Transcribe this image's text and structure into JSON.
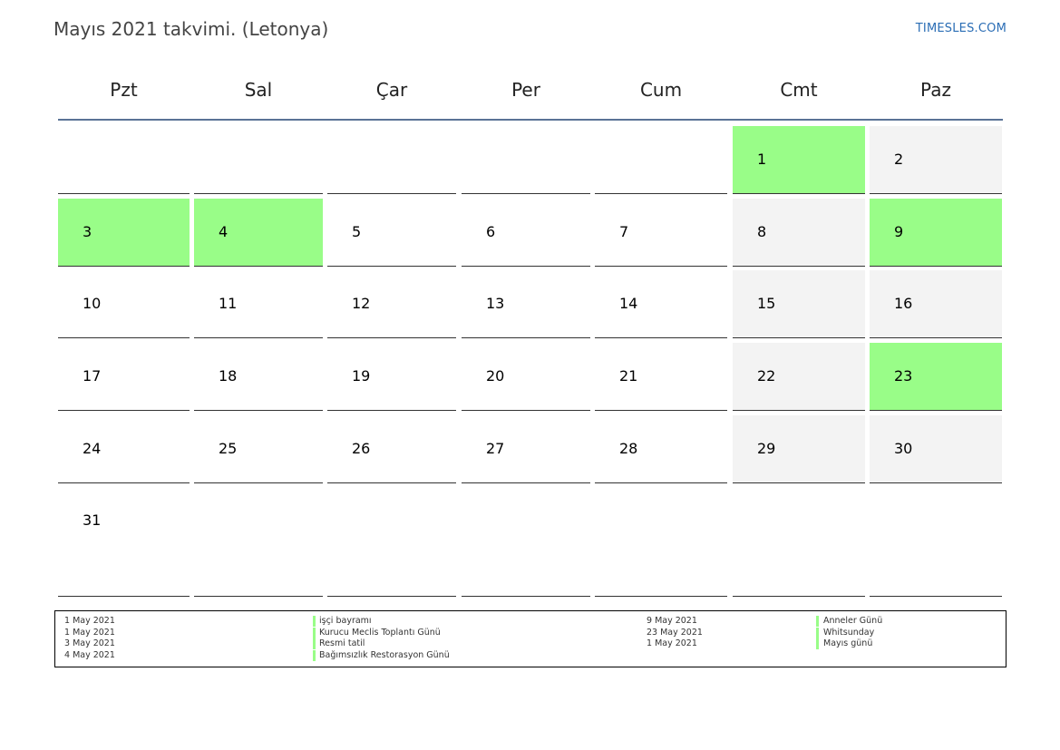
{
  "title": "Mayıs 2021 takvimi. (Letonya)",
  "brand": "TIMESLES.COM",
  "colors": {
    "holiday": "#99fd88",
    "weekend": "#f3f3f3",
    "header_rule": "#5a7396",
    "brand": "#2a6db5"
  },
  "weekdays": [
    "Pzt",
    "Sal",
    "Çar",
    "Per",
    "Cum",
    "Cmt",
    "Paz"
  ],
  "weeks": [
    [
      {
        "day": "",
        "type": "empty"
      },
      {
        "day": "",
        "type": "empty"
      },
      {
        "day": "",
        "type": "empty"
      },
      {
        "day": "",
        "type": "empty"
      },
      {
        "day": "",
        "type": "empty"
      },
      {
        "day": "1",
        "type": "holiday"
      },
      {
        "day": "2",
        "type": "weekend"
      }
    ],
    [
      {
        "day": "3",
        "type": "holiday"
      },
      {
        "day": "4",
        "type": "holiday"
      },
      {
        "day": "5",
        "type": "normal"
      },
      {
        "day": "6",
        "type": "normal"
      },
      {
        "day": "7",
        "type": "normal"
      },
      {
        "day": "8",
        "type": "weekend"
      },
      {
        "day": "9",
        "type": "holiday"
      }
    ],
    [
      {
        "day": "10",
        "type": "normal"
      },
      {
        "day": "11",
        "type": "normal"
      },
      {
        "day": "12",
        "type": "normal"
      },
      {
        "day": "13",
        "type": "normal"
      },
      {
        "day": "14",
        "type": "normal"
      },
      {
        "day": "15",
        "type": "weekend"
      },
      {
        "day": "16",
        "type": "weekend"
      }
    ],
    [
      {
        "day": "17",
        "type": "normal"
      },
      {
        "day": "18",
        "type": "normal"
      },
      {
        "day": "19",
        "type": "normal"
      },
      {
        "day": "20",
        "type": "normal"
      },
      {
        "day": "21",
        "type": "normal"
      },
      {
        "day": "22",
        "type": "weekend"
      },
      {
        "day": "23",
        "type": "holiday"
      }
    ],
    [
      {
        "day": "24",
        "type": "normal"
      },
      {
        "day": "25",
        "type": "normal"
      },
      {
        "day": "26",
        "type": "normal"
      },
      {
        "day": "27",
        "type": "normal"
      },
      {
        "day": "28",
        "type": "normal"
      },
      {
        "day": "29",
        "type": "weekend"
      },
      {
        "day": "30",
        "type": "weekend"
      }
    ],
    [
      {
        "day": "31",
        "type": "normal"
      },
      {
        "day": "",
        "type": "normal"
      },
      {
        "day": "",
        "type": "normal"
      },
      {
        "day": "",
        "type": "normal"
      },
      {
        "day": "",
        "type": "normal"
      },
      {
        "day": "",
        "type": "normal"
      },
      {
        "day": "",
        "type": "normal"
      }
    ]
  ],
  "holidays_left": [
    {
      "date": "1 May 2021",
      "name": "işçi bayramı"
    },
    {
      "date": "1 May 2021",
      "name": "Kurucu Meclis Toplantı Günü"
    },
    {
      "date": "3 May 2021",
      "name": "Resmi tatil"
    },
    {
      "date": "4 May 2021",
      "name": "Bağımsızlık Restorasyon Günü"
    }
  ],
  "holidays_right": [
    {
      "date": "9 May 2021",
      "name": "Anneler Günü"
    },
    {
      "date": "23 May 2021",
      "name": "Whitsunday"
    },
    {
      "date": "1 May 2021",
      "name": "Mayıs günü"
    }
  ]
}
